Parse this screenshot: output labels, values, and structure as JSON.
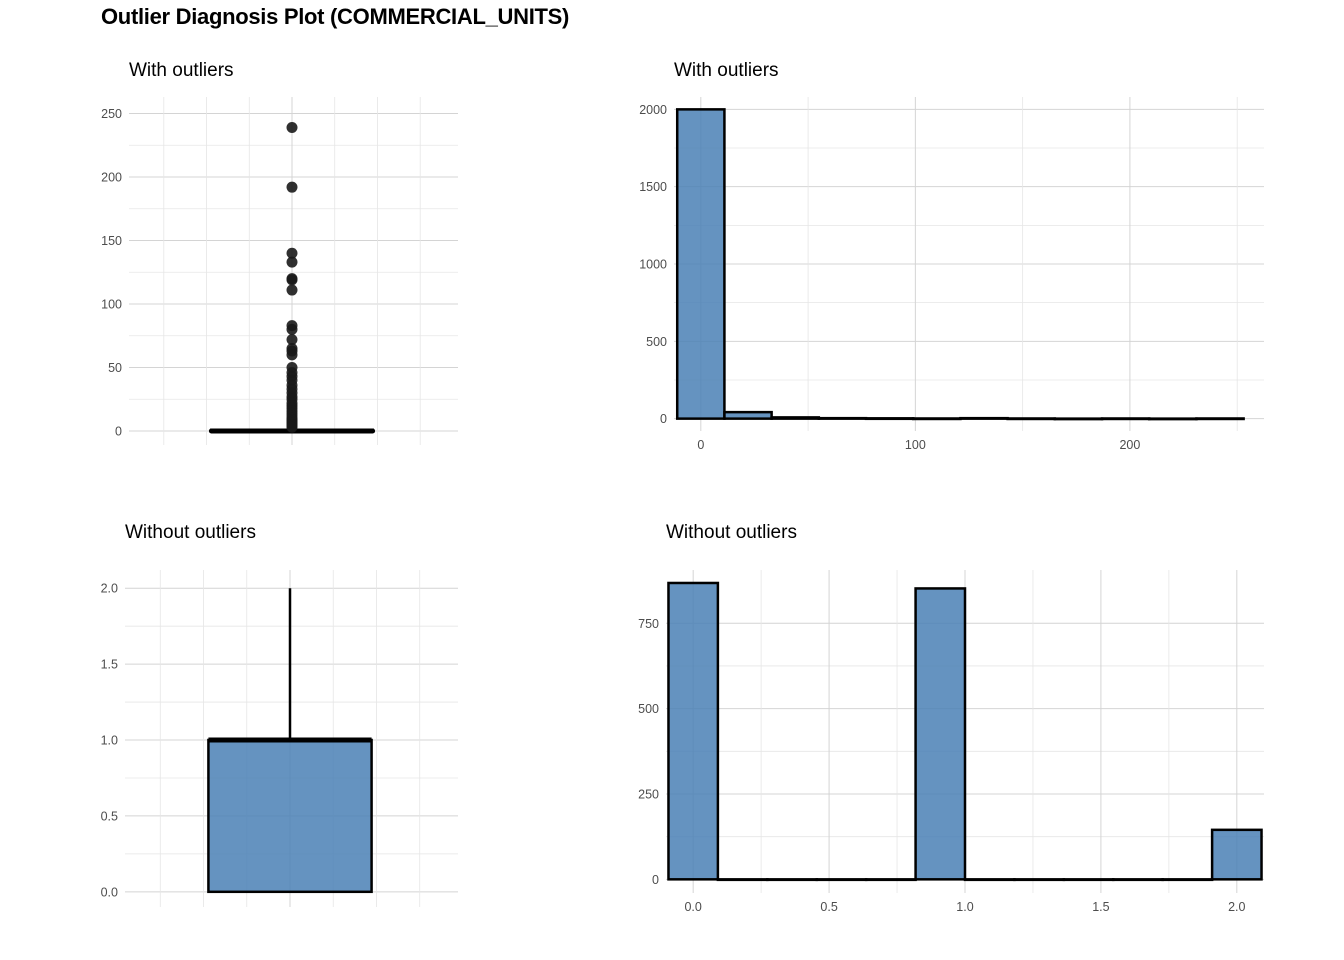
{
  "title": "Outlier Diagnosis Plot (COMMERCIAL_UNITS)",
  "colors": {
    "fill": "#4a80b5",
    "outline": "#000000",
    "grid": "#d4d4d4",
    "point": "#1a1a1a"
  },
  "chart_data": [
    {
      "type": "boxplot",
      "title": "With outliers",
      "ylim": [
        0,
        250
      ],
      "yticks": [
        "0",
        "50",
        "100",
        "150",
        "200",
        "250"
      ],
      "grid": true,
      "box": {
        "q1": 0,
        "median": 0,
        "q3": 1,
        "whisker_low": 0,
        "whisker_high": 2
      },
      "outliers": [
        239,
        192,
        140,
        133,
        120,
        119,
        111,
        83,
        80,
        72,
        65,
        63,
        60,
        50,
        46,
        43,
        40,
        36,
        33,
        30,
        27,
        25,
        22,
        20,
        18,
        16,
        14,
        12,
        10,
        9,
        8,
        7,
        6,
        5,
        4,
        3
      ]
    },
    {
      "type": "bar",
      "title": "With outliers",
      "xlim": [
        -12.5,
        262.5
      ],
      "ylim": [
        0,
        2000
      ],
      "xticks": [
        "0",
        "100",
        "200"
      ],
      "yticks": [
        "0",
        "500",
        "1000",
        "1500",
        "2000"
      ],
      "grid": true,
      "bin_width": 22,
      "bin_centers": [
        0,
        22,
        44,
        66,
        88,
        110,
        132,
        154,
        176,
        198,
        220,
        242
      ],
      "values": [
        2000,
        42,
        8,
        3,
        2,
        1,
        3,
        1,
        0,
        1,
        0,
        1
      ]
    },
    {
      "type": "boxplot",
      "title": "Without outliers",
      "ylim": [
        0,
        2
      ],
      "yticks": [
        "0.0",
        "0.5",
        "1.0",
        "1.5",
        "2.0"
      ],
      "grid": true,
      "box": {
        "q1": 0,
        "median": 1,
        "q3": 1,
        "whisker_low": 0,
        "whisker_high": 2
      },
      "outliers": []
    },
    {
      "type": "bar",
      "title": "Without outliers",
      "xlim": [
        -0.1,
        2.1
      ],
      "ylim": [
        0,
        870
      ],
      "xticks": [
        "0.0",
        "0.5",
        "1.0",
        "1.5",
        "2.0"
      ],
      "yticks": [
        "0",
        "250",
        "500",
        "750"
      ],
      "grid": true,
      "bin_width": 0.1818,
      "bin_centers": [
        0,
        0.1818,
        0.3636,
        0.5455,
        0.7273,
        0.9091,
        1.0909,
        1.2727,
        1.4545,
        1.6364,
        1.8182,
        2.0
      ],
      "values": [
        868,
        0,
        0,
        0,
        0,
        852,
        0,
        0,
        0,
        0,
        0,
        145
      ]
    }
  ]
}
